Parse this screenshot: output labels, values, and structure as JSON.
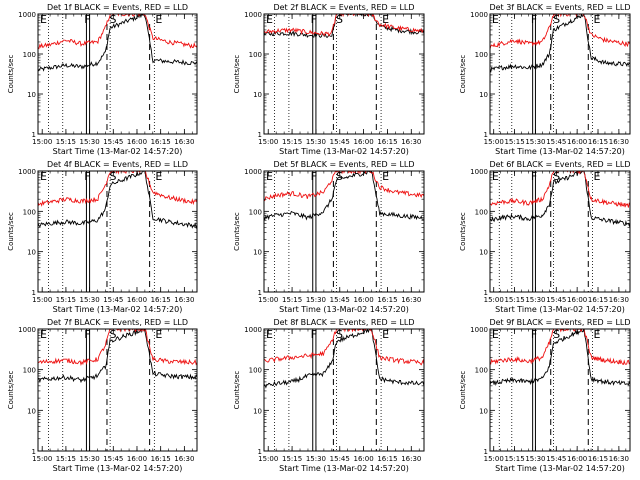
{
  "figure": {
    "xlabel": "Start Time (13-Mar-02 14:57:20)",
    "ylabel": "Counts/sec",
    "x_ticks": [
      "15:00",
      "15:15",
      "15:30",
      "15:45",
      "16:00",
      "16:15",
      "16:30"
    ],
    "y_ticks": [
      "1",
      "10",
      "100",
      "1000"
    ],
    "region_labels": [
      "E",
      "F",
      "S",
      "E"
    ]
  },
  "chart_data": [
    {
      "type": "line",
      "title": "Det 1f BLACK = Events, RED = LLD",
      "xlabel": "Start Time (13-Mar-02 14:57:20)",
      "ylabel": "Counts/sec",
      "y_scale": "log",
      "ylim": [
        1,
        1000
      ],
      "xlim": [
        "14:57:20",
        "16:38:00"
      ],
      "categories": [
        "15:00",
        "15:15",
        "15:30",
        "15:45",
        "16:00",
        "16:15",
        "16:30"
      ],
      "series": [
        {
          "name": "BLACK = Events",
          "color": "#000000",
          "x": [
            "14:57",
            "15:05",
            "15:15",
            "15:25",
            "15:35",
            "15:40",
            "15:43",
            "16:05",
            "16:10",
            "16:20",
            "16:35"
          ],
          "values": [
            40,
            45,
            52,
            48,
            60,
            110,
            450,
            1000,
            70,
            65,
            60
          ]
        },
        {
          "name": "RED = LLD",
          "color": "#ee1111",
          "x": [
            "14:57",
            "15:05",
            "15:15",
            "15:25",
            "15:35",
            "15:40",
            "15:43",
            "16:05",
            "16:10",
            "16:20",
            "16:35"
          ],
          "values": [
            150,
            170,
            220,
            180,
            200,
            450,
            1000,
            1000,
            250,
            200,
            160
          ]
        }
      ],
      "annotations": {
        "dotted_vlines": [
          "15:04",
          "15:13",
          "15:43",
          "16:11"
        ],
        "solid_vlines": [
          "15:28",
          "15:30"
        ],
        "dashed_vlines": [
          "15:41",
          "16:08"
        ],
        "region_labels": [
          "E",
          "F",
          "S",
          "E"
        ]
      }
    },
    {
      "type": "line",
      "title": "Det 2f BLACK = Events, RED = LLD",
      "xlabel": "Start Time (13-Mar-02 14:57:20)",
      "ylabel": "Counts/sec",
      "y_scale": "log",
      "ylim": [
        1,
        1000
      ],
      "xlim": [
        "14:57:20",
        "16:38:00"
      ],
      "categories": [
        "15:00",
        "15:15",
        "15:30",
        "15:45",
        "16:00",
        "16:15",
        "16:30"
      ],
      "series": [
        {
          "name": "BLACK = Events",
          "color": "#000000",
          "x": [
            "14:57",
            "15:05",
            "15:15",
            "15:25",
            "15:35",
            "15:40",
            "15:43",
            "16:05",
            "16:10",
            "16:20",
            "16:35"
          ],
          "values": [
            310,
            330,
            330,
            300,
            290,
            280,
            1000,
            1000,
            500,
            400,
            350
          ]
        },
        {
          "name": "RED = LLD",
          "color": "#ee1111",
          "x": [
            "14:57",
            "15:05",
            "15:15",
            "15:25",
            "15:35",
            "15:40",
            "15:43",
            "16:05",
            "16:10",
            "16:20",
            "16:35"
          ],
          "values": [
            350,
            380,
            400,
            350,
            320,
            330,
            1000,
            1000,
            550,
            450,
            380
          ]
        }
      ],
      "annotations": {
        "dotted_vlines": [
          "15:04",
          "15:13",
          "15:43",
          "16:11"
        ],
        "solid_vlines": [
          "15:28",
          "15:30"
        ],
        "dashed_vlines": [
          "15:41",
          "16:08"
        ],
        "region_labels": [
          "E",
          "F",
          "S",
          "E"
        ]
      }
    },
    {
      "type": "line",
      "title": "Det 3f BLACK = Events, RED = LLD",
      "xlabel": "Start Time (13-Mar-02 14:57:20)",
      "ylabel": "Counts/sec",
      "y_scale": "log",
      "ylim": [
        1,
        1000
      ],
      "xlim": [
        "14:57:20",
        "16:38:00"
      ],
      "categories": [
        "15:00",
        "15:15",
        "15:30",
        "15:45",
        "16:00",
        "16:15",
        "16:30"
      ],
      "series": [
        {
          "name": "BLACK = Events",
          "color": "#000000",
          "x": [
            "14:57",
            "15:05",
            "15:15",
            "15:25",
            "15:35",
            "15:40",
            "15:43",
            "16:05",
            "16:10",
            "16:20",
            "16:35"
          ],
          "values": [
            40,
            45,
            50,
            45,
            55,
            100,
            400,
            1000,
            80,
            60,
            55
          ]
        },
        {
          "name": "RED = LLD",
          "color": "#ee1111",
          "x": [
            "14:57",
            "15:05",
            "15:15",
            "15:25",
            "15:35",
            "15:40",
            "15:43",
            "16:05",
            "16:10",
            "16:20",
            "16:35"
          ],
          "values": [
            150,
            180,
            220,
            180,
            200,
            450,
            1000,
            1000,
            300,
            220,
            180
          ]
        }
      ],
      "annotations": {
        "dotted_vlines": [
          "15:04",
          "15:13",
          "15:43",
          "16:11"
        ],
        "solid_vlines": [
          "15:28",
          "15:30"
        ],
        "dashed_vlines": [
          "15:41",
          "16:08"
        ],
        "region_labels": [
          "E",
          "F",
          "S",
          "E"
        ]
      }
    },
    {
      "type": "line",
      "title": "Det 4f BLACK = Events, RED = LLD",
      "xlabel": "Start Time (13-Mar-02 14:57:20)",
      "ylabel": "Counts/sec",
      "y_scale": "log",
      "ylim": [
        1,
        1000
      ],
      "xlim": [
        "14:57:20",
        "16:38:00"
      ],
      "categories": [
        "15:00",
        "15:15",
        "15:30",
        "15:45",
        "16:00",
        "16:15",
        "16:30"
      ],
      "series": [
        {
          "name": "BLACK = Events",
          "color": "#000000",
          "x": [
            "14:57",
            "15:05",
            "15:15",
            "15:25",
            "15:35",
            "15:40",
            "15:43",
            "16:05",
            "16:10",
            "16:20",
            "16:35"
          ],
          "values": [
            45,
            50,
            55,
            50,
            60,
            110,
            450,
            1000,
            70,
            55,
            45
          ]
        },
        {
          "name": "RED = LLD",
          "color": "#ee1111",
          "x": [
            "14:57",
            "15:05",
            "15:15",
            "15:25",
            "15:35",
            "15:40",
            "15:43",
            "16:05",
            "16:10",
            "16:20",
            "16:35"
          ],
          "values": [
            150,
            170,
            200,
            180,
            200,
            450,
            1000,
            1000,
            300,
            220,
            170
          ]
        }
      ],
      "annotations": {
        "dotted_vlines": [
          "15:04",
          "15:13",
          "15:43",
          "16:11"
        ],
        "solid_vlines": [
          "15:28",
          "15:30"
        ],
        "dashed_vlines": [
          "15:41",
          "16:08"
        ],
        "region_labels": [
          "E",
          "F",
          "S",
          "E"
        ]
      }
    },
    {
      "type": "line",
      "title": "Det 5f BLACK = Events, RED = LLD",
      "xlabel": "Start Time (13-Mar-02 14:57:20)",
      "ylabel": "Counts/sec",
      "y_scale": "log",
      "ylim": [
        1,
        1000
      ],
      "xlim": [
        "14:57:20",
        "16:38:00"
      ],
      "categories": [
        "15:00",
        "15:15",
        "15:30",
        "15:45",
        "16:00",
        "16:15",
        "16:30"
      ],
      "series": [
        {
          "name": "BLACK = Events",
          "color": "#000000",
          "x": [
            "14:57",
            "15:05",
            "15:15",
            "15:25",
            "15:35",
            "15:40",
            "15:43",
            "16:05",
            "16:10",
            "16:20",
            "16:35"
          ],
          "values": [
            70,
            80,
            90,
            70,
            100,
            200,
            600,
            1000,
            90,
            80,
            70
          ]
        },
        {
          "name": "RED = LLD",
          "color": "#ee1111",
          "x": [
            "14:57",
            "15:05",
            "15:15",
            "15:25",
            "15:35",
            "15:40",
            "15:43",
            "16:05",
            "16:10",
            "16:20",
            "16:35"
          ],
          "values": [
            200,
            250,
            280,
            230,
            300,
            600,
            1000,
            1000,
            400,
            300,
            250
          ]
        }
      ],
      "annotations": {
        "dotted_vlines": [
          "15:04",
          "15:13",
          "15:43",
          "16:11"
        ],
        "solid_vlines": [
          "15:28",
          "15:30"
        ],
        "dashed_vlines": [
          "15:41",
          "16:08"
        ],
        "region_labels": [
          "E",
          "F",
          "S",
          "E"
        ]
      }
    },
    {
      "type": "line",
      "title": "Det 6f BLACK = Events, RED = LLD",
      "xlabel": "Start Time (13-Mar-02 14:57:20)",
      "ylabel": "Counts/sec",
      "y_scale": "log",
      "ylim": [
        1,
        1000
      ],
      "xlim": [
        "14:57:20",
        "16:38:00"
      ],
      "categories": [
        "15:00",
        "15:15",
        "15:30",
        "15:45",
        "16:00",
        "16:15",
        "16:30"
      ],
      "series": [
        {
          "name": "BLACK = Events",
          "color": "#000000",
          "x": [
            "14:57",
            "15:05",
            "15:15",
            "15:25",
            "15:35",
            "15:40",
            "15:43",
            "16:05",
            "16:10",
            "16:20",
            "16:35"
          ],
          "values": [
            60,
            70,
            75,
            65,
            80,
            150,
            500,
            1000,
            70,
            60,
            50
          ]
        },
        {
          "name": "RED = LLD",
          "color": "#ee1111",
          "x": [
            "14:57",
            "15:05",
            "15:15",
            "15:25",
            "15:35",
            "15:40",
            "15:43",
            "16:05",
            "16:10",
            "16:20",
            "16:35"
          ],
          "values": [
            150,
            170,
            180,
            160,
            200,
            450,
            1000,
            1000,
            200,
            170,
            140
          ]
        }
      ],
      "annotations": {
        "dotted_vlines": [
          "15:04",
          "15:13",
          "15:43",
          "16:11"
        ],
        "solid_vlines": [
          "15:28",
          "15:30"
        ],
        "dashed_vlines": [
          "15:41",
          "16:08"
        ],
        "region_labels": [
          "E",
          "F",
          "S",
          "E"
        ]
      }
    },
    {
      "type": "line",
      "title": "Det 7f BLACK = Events, RED = LLD",
      "xlabel": "Start Time (13-Mar-02 14:57:20)",
      "ylabel": "Counts/sec",
      "y_scale": "log",
      "ylim": [
        1,
        1000
      ],
      "xlim": [
        "14:57:20",
        "16:38:00"
      ],
      "categories": [
        "15:00",
        "15:15",
        "15:30",
        "15:45",
        "16:00",
        "16:15",
        "16:30"
      ],
      "series": [
        {
          "name": "BLACK = Events",
          "color": "#000000",
          "x": [
            "14:57",
            "15:05",
            "15:15",
            "15:25",
            "15:35",
            "15:40",
            "15:43",
            "16:05",
            "16:10",
            "16:20",
            "16:35"
          ],
          "values": [
            55,
            60,
            65,
            55,
            70,
            120,
            500,
            1000,
            80,
            70,
            65
          ]
        },
        {
          "name": "RED = LLD",
          "color": "#ee1111",
          "x": [
            "14:57",
            "15:05",
            "15:15",
            "15:25",
            "15:35",
            "15:40",
            "15:43",
            "16:05",
            "16:10",
            "16:20",
            "16:35"
          ],
          "values": [
            150,
            160,
            170,
            150,
            180,
            400,
            1000,
            1000,
            180,
            160,
            150
          ]
        }
      ],
      "annotations": {
        "dotted_vlines": [
          "15:04",
          "15:13",
          "15:43",
          "16:11"
        ],
        "solid_vlines": [
          "15:28",
          "15:30"
        ],
        "dashed_vlines": [
          "15:41",
          "16:08"
        ],
        "region_labels": [
          "E",
          "F",
          "S",
          "E"
        ]
      }
    },
    {
      "type": "line",
      "title": "Det 8f BLACK = Events, RED = LLD",
      "xlabel": "Start Time (13-Mar-02 14:57:20)",
      "ylabel": "Counts/sec",
      "y_scale": "log",
      "ylim": [
        1,
        1000
      ],
      "xlim": [
        "14:57:20",
        "16:38:00"
      ],
      "categories": [
        "15:00",
        "15:15",
        "15:30",
        "15:45",
        "16:00",
        "16:15",
        "16:30"
      ],
      "series": [
        {
          "name": "BLACK = Events",
          "color": "#000000",
          "x": [
            "14:57",
            "15:05",
            "15:15",
            "15:25",
            "15:35",
            "15:40",
            "15:43",
            "16:05",
            "16:10",
            "16:20",
            "16:35"
          ],
          "values": [
            40,
            45,
            50,
            70,
            80,
            150,
            500,
            1000,
            60,
            50,
            45
          ]
        },
        {
          "name": "RED = LLD",
          "color": "#ee1111",
          "x": [
            "14:57",
            "15:05",
            "15:15",
            "15:25",
            "15:35",
            "15:40",
            "15:43",
            "16:05",
            "16:10",
            "16:20",
            "16:35"
          ],
          "values": [
            160,
            180,
            200,
            220,
            250,
            500,
            1000,
            1000,
            200,
            170,
            150
          ]
        }
      ],
      "annotations": {
        "dotted_vlines": [
          "15:04",
          "15:13",
          "15:43",
          "16:11"
        ],
        "solid_vlines": [
          "15:28",
          "15:30"
        ],
        "dashed_vlines": [
          "15:41",
          "16:08"
        ],
        "region_labels": [
          "E",
          "F",
          "S",
          "E"
        ]
      }
    },
    {
      "type": "line",
      "title": "Det 9f BLACK = Events, RED = LLD",
      "xlabel": "Start Time (13-Mar-02 14:57:20)",
      "ylabel": "Counts/sec",
      "y_scale": "log",
      "ylim": [
        1,
        1000
      ],
      "xlim": [
        "14:57:20",
        "16:38:00"
      ],
      "categories": [
        "15:00",
        "15:15",
        "15:30",
        "15:45",
        "16:00",
        "16:15",
        "16:30"
      ],
      "series": [
        {
          "name": "BLACK = Events",
          "color": "#000000",
          "x": [
            "14:57",
            "15:05",
            "15:15",
            "15:25",
            "15:35",
            "15:40",
            "15:43",
            "16:05",
            "16:10",
            "16:20",
            "16:35"
          ],
          "values": [
            45,
            50,
            55,
            50,
            60,
            120,
            450,
            1000,
            60,
            50,
            45
          ]
        },
        {
          "name": "RED = LLD",
          "color": "#ee1111",
          "x": [
            "14:57",
            "15:05",
            "15:15",
            "15:25",
            "15:35",
            "15:40",
            "15:43",
            "16:05",
            "16:10",
            "16:20",
            "16:35"
          ],
          "values": [
            150,
            170,
            180,
            160,
            200,
            450,
            1000,
            1000,
            200,
            170,
            150
          ]
        }
      ],
      "annotations": {
        "dotted_vlines": [
          "15:04",
          "15:13",
          "15:43",
          "16:11"
        ],
        "solid_vlines": [
          "15:28",
          "15:30"
        ],
        "dashed_vlines": [
          "15:41",
          "16:08"
        ],
        "region_labels": [
          "E",
          "F",
          "S",
          "E"
        ]
      }
    }
  ]
}
